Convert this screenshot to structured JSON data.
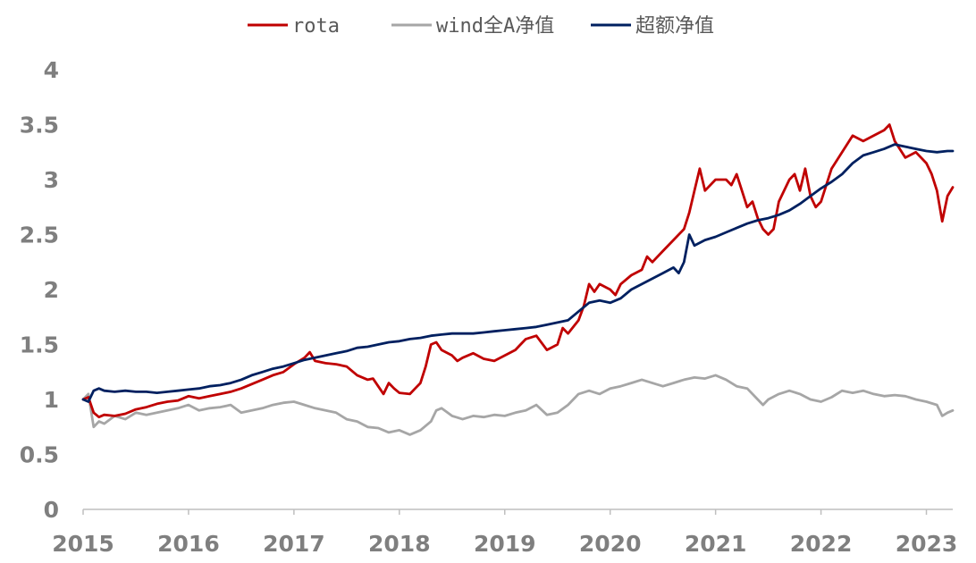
{
  "chart_data": {
    "type": "line",
    "title": "",
    "xlabel": "",
    "ylabel": "",
    "ylim": [
      0,
      4
    ],
    "xlim": [
      2015.0,
      2023.25
    ],
    "grid": false,
    "legend_position": "top-center",
    "y_ticks": [
      {
        "value": 0,
        "label": "0"
      },
      {
        "value": 0.5,
        "label": "0.5"
      },
      {
        "value": 1,
        "label": "1"
      },
      {
        "value": 1.5,
        "label": "1.5"
      },
      {
        "value": 2,
        "label": "2"
      },
      {
        "value": 2.5,
        "label": "2.5"
      },
      {
        "value": 3,
        "label": "3"
      },
      {
        "value": 3.5,
        "label": "3.5"
      },
      {
        "value": 4,
        "label": "4"
      }
    ],
    "x_ticks": [
      {
        "value": 2015,
        "label": "2015"
      },
      {
        "value": 2016,
        "label": "2016"
      },
      {
        "value": 2017,
        "label": "2017"
      },
      {
        "value": 2018,
        "label": "2018"
      },
      {
        "value": 2019,
        "label": "2019"
      },
      {
        "value": 2020,
        "label": "2020"
      },
      {
        "value": 2021,
        "label": "2021"
      },
      {
        "value": 2022,
        "label": "2022"
      },
      {
        "value": 2023,
        "label": "2023"
      }
    ],
    "series": [
      {
        "name": "rota",
        "color": "#c00000",
        "points": [
          [
            2015.0,
            1.0
          ],
          [
            2015.05,
            1.02
          ],
          [
            2015.1,
            0.88
          ],
          [
            2015.15,
            0.84
          ],
          [
            2015.2,
            0.86
          ],
          [
            2015.3,
            0.85
          ],
          [
            2015.4,
            0.87
          ],
          [
            2015.5,
            0.91
          ],
          [
            2015.6,
            0.93
          ],
          [
            2015.7,
            0.96
          ],
          [
            2015.8,
            0.98
          ],
          [
            2015.9,
            0.99
          ],
          [
            2016.0,
            1.03
          ],
          [
            2016.1,
            1.01
          ],
          [
            2016.2,
            1.03
          ],
          [
            2016.3,
            1.05
          ],
          [
            2016.4,
            1.07
          ],
          [
            2016.5,
            1.1
          ],
          [
            2016.6,
            1.14
          ],
          [
            2016.7,
            1.18
          ],
          [
            2016.8,
            1.22
          ],
          [
            2016.9,
            1.25
          ],
          [
            2017.0,
            1.32
          ],
          [
            2017.1,
            1.38
          ],
          [
            2017.15,
            1.43
          ],
          [
            2017.2,
            1.35
          ],
          [
            2017.3,
            1.33
          ],
          [
            2017.4,
            1.32
          ],
          [
            2017.5,
            1.3
          ],
          [
            2017.6,
            1.22
          ],
          [
            2017.7,
            1.18
          ],
          [
            2017.75,
            1.19
          ],
          [
            2017.85,
            1.05
          ],
          [
            2017.9,
            1.15
          ],
          [
            2017.95,
            1.1
          ],
          [
            2018.0,
            1.06
          ],
          [
            2018.1,
            1.05
          ],
          [
            2018.15,
            1.1
          ],
          [
            2018.2,
            1.15
          ],
          [
            2018.25,
            1.3
          ],
          [
            2018.3,
            1.5
          ],
          [
            2018.35,
            1.52
          ],
          [
            2018.4,
            1.45
          ],
          [
            2018.5,
            1.4
          ],
          [
            2018.55,
            1.35
          ],
          [
            2018.6,
            1.38
          ],
          [
            2018.7,
            1.42
          ],
          [
            2018.8,
            1.37
          ],
          [
            2018.9,
            1.35
          ],
          [
            2019.0,
            1.4
          ],
          [
            2019.1,
            1.45
          ],
          [
            2019.15,
            1.5
          ],
          [
            2019.2,
            1.55
          ],
          [
            2019.3,
            1.58
          ],
          [
            2019.4,
            1.45
          ],
          [
            2019.5,
            1.5
          ],
          [
            2019.55,
            1.65
          ],
          [
            2019.6,
            1.6
          ],
          [
            2019.7,
            1.72
          ],
          [
            2019.75,
            1.85
          ],
          [
            2019.8,
            2.05
          ],
          [
            2019.85,
            1.98
          ],
          [
            2019.9,
            2.05
          ],
          [
            2020.0,
            2.0
          ],
          [
            2020.05,
            1.95
          ],
          [
            2020.1,
            2.05
          ],
          [
            2020.2,
            2.13
          ],
          [
            2020.3,
            2.18
          ],
          [
            2020.35,
            2.3
          ],
          [
            2020.4,
            2.25
          ],
          [
            2020.5,
            2.35
          ],
          [
            2020.6,
            2.45
          ],
          [
            2020.7,
            2.55
          ],
          [
            2020.75,
            2.7
          ],
          [
            2020.8,
            2.9
          ],
          [
            2020.85,
            3.1
          ],
          [
            2020.9,
            2.9
          ],
          [
            2021.0,
            3.0
          ],
          [
            2021.1,
            3.0
          ],
          [
            2021.15,
            2.95
          ],
          [
            2021.2,
            3.05
          ],
          [
            2021.25,
            2.9
          ],
          [
            2021.3,
            2.75
          ],
          [
            2021.35,
            2.8
          ],
          [
            2021.4,
            2.65
          ],
          [
            2021.45,
            2.55
          ],
          [
            2021.5,
            2.5
          ],
          [
            2021.55,
            2.55
          ],
          [
            2021.6,
            2.8
          ],
          [
            2021.7,
            3.0
          ],
          [
            2021.75,
            3.05
          ],
          [
            2021.8,
            2.9
          ],
          [
            2021.85,
            3.1
          ],
          [
            2021.9,
            2.85
          ],
          [
            2021.95,
            2.75
          ],
          [
            2022.0,
            2.8
          ],
          [
            2022.1,
            3.1
          ],
          [
            2022.2,
            3.25
          ],
          [
            2022.3,
            3.4
          ],
          [
            2022.4,
            3.35
          ],
          [
            2022.5,
            3.4
          ],
          [
            2022.6,
            3.45
          ],
          [
            2022.65,
            3.5
          ],
          [
            2022.7,
            3.35
          ],
          [
            2022.8,
            3.2
          ],
          [
            2022.9,
            3.25
          ],
          [
            2023.0,
            3.15
          ],
          [
            2023.05,
            3.05
          ],
          [
            2023.1,
            2.9
          ],
          [
            2023.15,
            2.62
          ],
          [
            2023.2,
            2.85
          ],
          [
            2023.25,
            2.93
          ]
        ]
      },
      {
        "name": "wind全A净值",
        "color": "#a6a6a6",
        "points": [
          [
            2015.0,
            1.0
          ],
          [
            2015.05,
            1.05
          ],
          [
            2015.1,
            0.75
          ],
          [
            2015.15,
            0.8
          ],
          [
            2015.2,
            0.78
          ],
          [
            2015.3,
            0.85
          ],
          [
            2015.4,
            0.82
          ],
          [
            2015.5,
            0.88
          ],
          [
            2015.6,
            0.86
          ],
          [
            2015.7,
            0.88
          ],
          [
            2015.8,
            0.9
          ],
          [
            2015.9,
            0.92
          ],
          [
            2016.0,
            0.95
          ],
          [
            2016.1,
            0.9
          ],
          [
            2016.2,
            0.92
          ],
          [
            2016.3,
            0.93
          ],
          [
            2016.4,
            0.95
          ],
          [
            2016.5,
            0.88
          ],
          [
            2016.6,
            0.9
          ],
          [
            2016.7,
            0.92
          ],
          [
            2016.8,
            0.95
          ],
          [
            2016.9,
            0.97
          ],
          [
            2017.0,
            0.98
          ],
          [
            2017.1,
            0.95
          ],
          [
            2017.2,
            0.92
          ],
          [
            2017.3,
            0.9
          ],
          [
            2017.4,
            0.88
          ],
          [
            2017.5,
            0.82
          ],
          [
            2017.6,
            0.8
          ],
          [
            2017.7,
            0.75
          ],
          [
            2017.8,
            0.74
          ],
          [
            2017.9,
            0.7
          ],
          [
            2018.0,
            0.72
          ],
          [
            2018.1,
            0.68
          ],
          [
            2018.2,
            0.72
          ],
          [
            2018.3,
            0.8
          ],
          [
            2018.35,
            0.9
          ],
          [
            2018.4,
            0.92
          ],
          [
            2018.5,
            0.85
          ],
          [
            2018.6,
            0.82
          ],
          [
            2018.7,
            0.85
          ],
          [
            2018.8,
            0.84
          ],
          [
            2018.9,
            0.86
          ],
          [
            2019.0,
            0.85
          ],
          [
            2019.1,
            0.88
          ],
          [
            2019.2,
            0.9
          ],
          [
            2019.3,
            0.95
          ],
          [
            2019.4,
            0.86
          ],
          [
            2019.5,
            0.88
          ],
          [
            2019.6,
            0.95
          ],
          [
            2019.7,
            1.05
          ],
          [
            2019.8,
            1.08
          ],
          [
            2019.9,
            1.05
          ],
          [
            2020.0,
            1.1
          ],
          [
            2020.1,
            1.12
          ],
          [
            2020.2,
            1.15
          ],
          [
            2020.3,
            1.18
          ],
          [
            2020.4,
            1.15
          ],
          [
            2020.5,
            1.12
          ],
          [
            2020.6,
            1.15
          ],
          [
            2020.7,
            1.18
          ],
          [
            2020.8,
            1.2
          ],
          [
            2020.9,
            1.19
          ],
          [
            2021.0,
            1.22
          ],
          [
            2021.1,
            1.18
          ],
          [
            2021.2,
            1.12
          ],
          [
            2021.3,
            1.1
          ],
          [
            2021.4,
            1.0
          ],
          [
            2021.45,
            0.95
          ],
          [
            2021.5,
            1.0
          ],
          [
            2021.6,
            1.05
          ],
          [
            2021.7,
            1.08
          ],
          [
            2021.8,
            1.05
          ],
          [
            2021.9,
            1.0
          ],
          [
            2022.0,
            0.98
          ],
          [
            2022.1,
            1.02
          ],
          [
            2022.2,
            1.08
          ],
          [
            2022.3,
            1.06
          ],
          [
            2022.4,
            1.08
          ],
          [
            2022.5,
            1.05
          ],
          [
            2022.6,
            1.03
          ],
          [
            2022.7,
            1.04
          ],
          [
            2022.8,
            1.03
          ],
          [
            2022.9,
            1.0
          ],
          [
            2023.0,
            0.98
          ],
          [
            2023.1,
            0.95
          ],
          [
            2023.15,
            0.85
          ],
          [
            2023.2,
            0.88
          ],
          [
            2023.25,
            0.9
          ]
        ]
      },
      {
        "name": "超额净值",
        "color": "#002060",
        "points": [
          [
            2015.0,
            1.0
          ],
          [
            2015.05,
            0.98
          ],
          [
            2015.1,
            1.08
          ],
          [
            2015.15,
            1.1
          ],
          [
            2015.2,
            1.08
          ],
          [
            2015.3,
            1.07
          ],
          [
            2015.4,
            1.08
          ],
          [
            2015.5,
            1.07
          ],
          [
            2015.6,
            1.07
          ],
          [
            2015.7,
            1.06
          ],
          [
            2015.8,
            1.07
          ],
          [
            2015.9,
            1.08
          ],
          [
            2016.0,
            1.09
          ],
          [
            2016.1,
            1.1
          ],
          [
            2016.2,
            1.12
          ],
          [
            2016.3,
            1.13
          ],
          [
            2016.4,
            1.15
          ],
          [
            2016.5,
            1.18
          ],
          [
            2016.6,
            1.22
          ],
          [
            2016.7,
            1.25
          ],
          [
            2016.8,
            1.28
          ],
          [
            2016.9,
            1.3
          ],
          [
            2017.0,
            1.33
          ],
          [
            2017.1,
            1.36
          ],
          [
            2017.2,
            1.38
          ],
          [
            2017.3,
            1.4
          ],
          [
            2017.4,
            1.42
          ],
          [
            2017.5,
            1.44
          ],
          [
            2017.6,
            1.47
          ],
          [
            2017.7,
            1.48
          ],
          [
            2017.8,
            1.5
          ],
          [
            2017.9,
            1.52
          ],
          [
            2018.0,
            1.53
          ],
          [
            2018.1,
            1.55
          ],
          [
            2018.2,
            1.56
          ],
          [
            2018.3,
            1.58
          ],
          [
            2018.4,
            1.59
          ],
          [
            2018.5,
            1.6
          ],
          [
            2018.6,
            1.6
          ],
          [
            2018.7,
            1.6
          ],
          [
            2018.8,
            1.61
          ],
          [
            2018.9,
            1.62
          ],
          [
            2019.0,
            1.63
          ],
          [
            2019.1,
            1.64
          ],
          [
            2019.2,
            1.65
          ],
          [
            2019.3,
            1.66
          ],
          [
            2019.4,
            1.68
          ],
          [
            2019.5,
            1.7
          ],
          [
            2019.6,
            1.72
          ],
          [
            2019.7,
            1.8
          ],
          [
            2019.8,
            1.88
          ],
          [
            2019.9,
            1.9
          ],
          [
            2020.0,
            1.88
          ],
          [
            2020.1,
            1.92
          ],
          [
            2020.2,
            2.0
          ],
          [
            2020.3,
            2.05
          ],
          [
            2020.4,
            2.1
          ],
          [
            2020.5,
            2.15
          ],
          [
            2020.6,
            2.2
          ],
          [
            2020.65,
            2.15
          ],
          [
            2020.7,
            2.25
          ],
          [
            2020.75,
            2.5
          ],
          [
            2020.8,
            2.4
          ],
          [
            2020.9,
            2.45
          ],
          [
            2021.0,
            2.48
          ],
          [
            2021.1,
            2.52
          ],
          [
            2021.2,
            2.56
          ],
          [
            2021.3,
            2.6
          ],
          [
            2021.4,
            2.63
          ],
          [
            2021.5,
            2.65
          ],
          [
            2021.6,
            2.68
          ],
          [
            2021.7,
            2.72
          ],
          [
            2021.8,
            2.78
          ],
          [
            2021.9,
            2.85
          ],
          [
            2022.0,
            2.92
          ],
          [
            2022.1,
            2.98
          ],
          [
            2022.2,
            3.05
          ],
          [
            2022.3,
            3.15
          ],
          [
            2022.4,
            3.22
          ],
          [
            2022.5,
            3.25
          ],
          [
            2022.6,
            3.28
          ],
          [
            2022.7,
            3.32
          ],
          [
            2022.8,
            3.3
          ],
          [
            2022.9,
            3.28
          ],
          [
            2023.0,
            3.26
          ],
          [
            2023.1,
            3.25
          ],
          [
            2023.2,
            3.26
          ],
          [
            2023.25,
            3.26
          ]
        ]
      }
    ]
  }
}
